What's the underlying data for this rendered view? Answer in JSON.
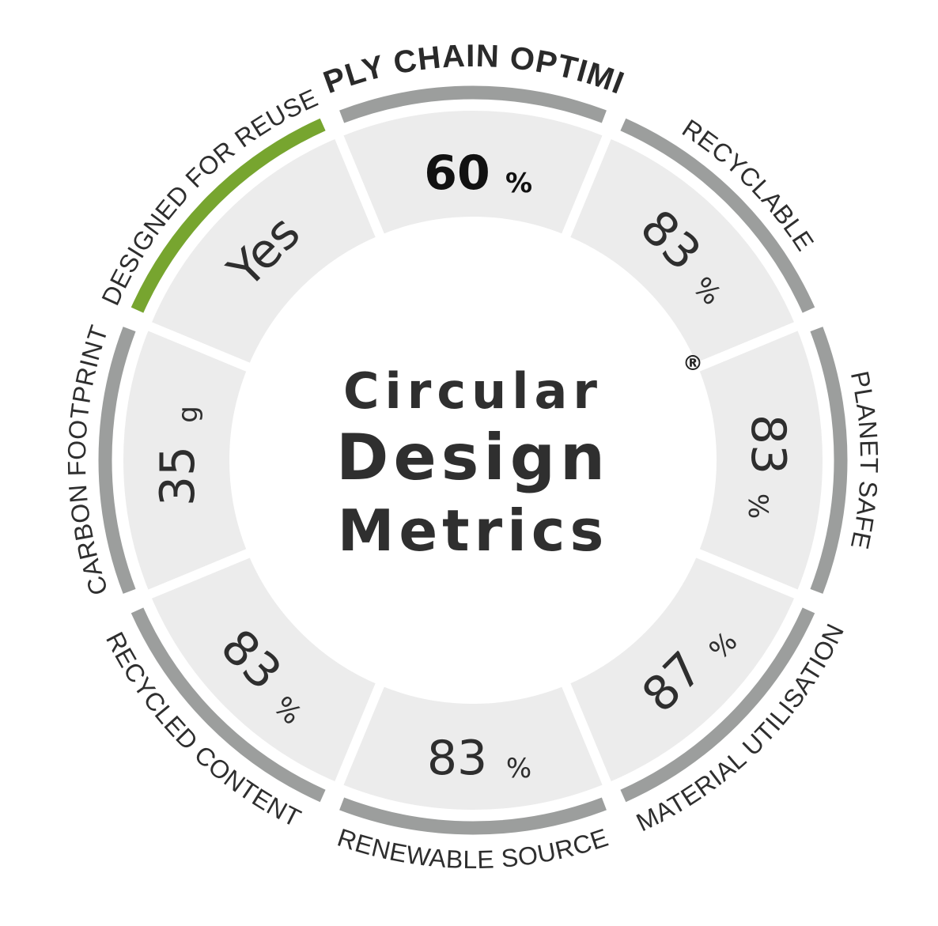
{
  "center": {
    "lines": [
      "Circular",
      "Design",
      "Metrics"
    ],
    "registered_mark": "®"
  },
  "metrics": [
    {
      "id": "supply-chain-optimized",
      "label": "SUPPLY CHAIN OPTIMIZED",
      "value": "60",
      "unit": "%",
      "major": true,
      "highlighted": false
    },
    {
      "id": "recyclable",
      "label": "RECYCLABLE",
      "value": "83",
      "unit": "%",
      "major": false,
      "highlighted": false
    },
    {
      "id": "planet-safe",
      "label": "PLANET SAFE",
      "value": "83",
      "unit": "%",
      "major": false,
      "highlighted": false
    },
    {
      "id": "material-utilisation",
      "label": "MATERIAL UTILISATION",
      "value": "87",
      "unit": "%",
      "major": false,
      "highlighted": false
    },
    {
      "id": "renewable-source",
      "label": "RENEWABLE SOURCE",
      "value": "83",
      "unit": "%",
      "major": false,
      "highlighted": false
    },
    {
      "id": "recycled-content",
      "label": "RECYCLED CONTENT",
      "value": "83",
      "unit": "%",
      "major": false,
      "highlighted": false
    },
    {
      "id": "carbon-footprint",
      "label": "CARBON FOOTPRINT",
      "value": "35",
      "unit": "g",
      "major": false,
      "highlighted": false
    },
    {
      "id": "designed-for-reuse",
      "label": "DESIGNED FOR REUSE",
      "value": "Yes",
      "unit": "",
      "major": false,
      "highlighted": true
    }
  ],
  "colors": {
    "segment_fill": "#ececec",
    "ring": "#9c9e9d",
    "highlight": "#77a52f",
    "text": "#2e2e2e"
  }
}
